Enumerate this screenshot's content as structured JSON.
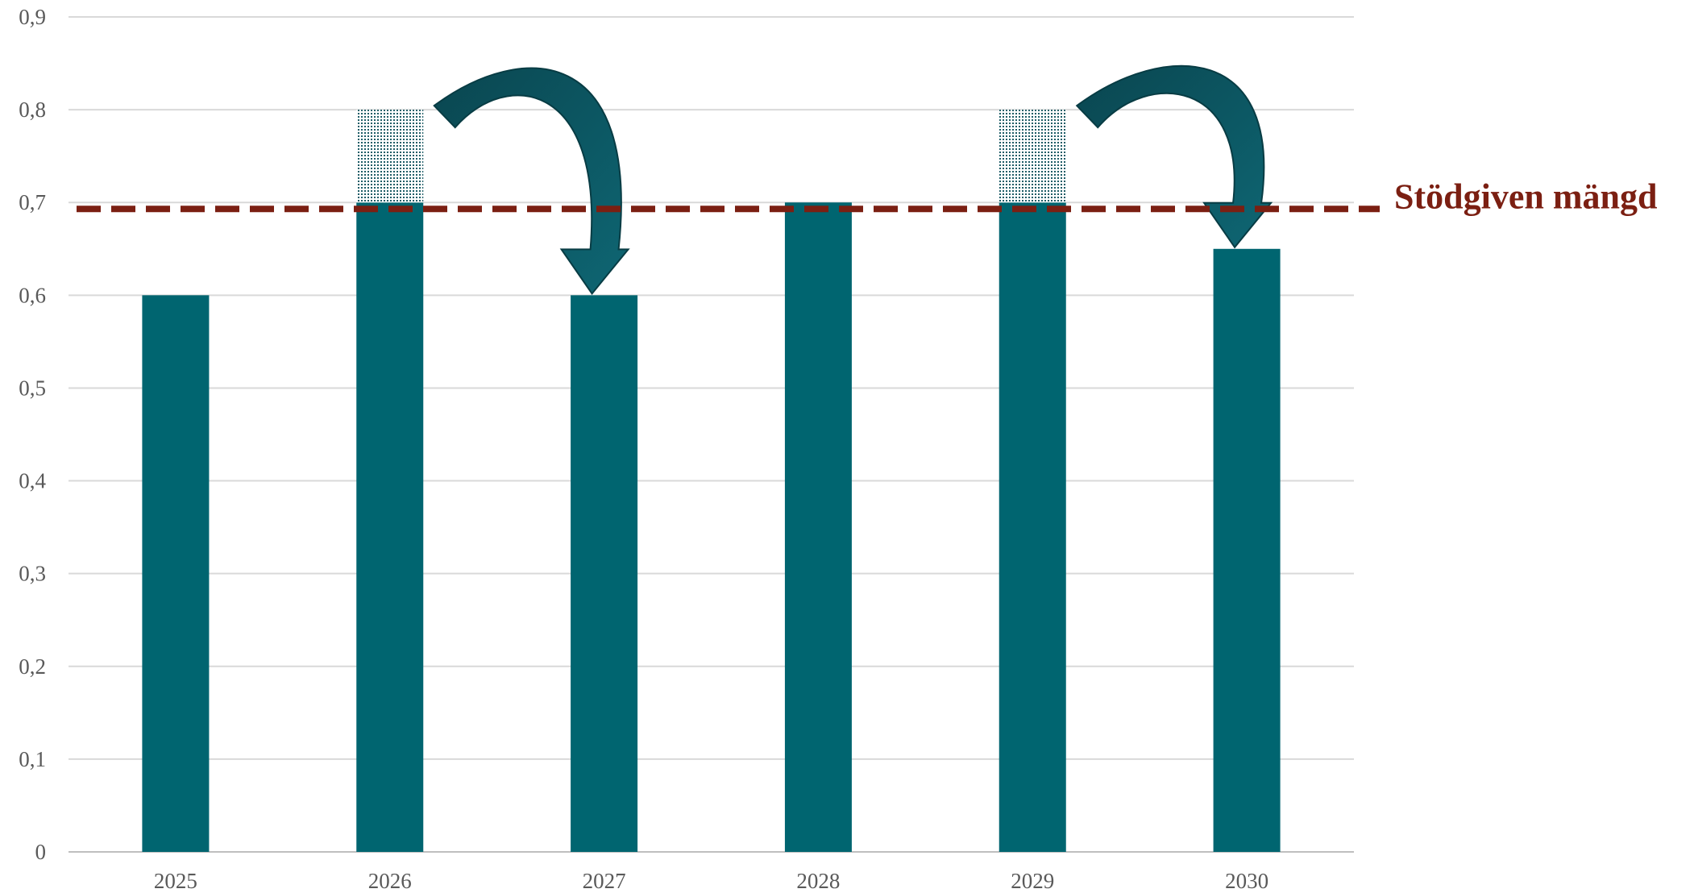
{
  "chart_data": {
    "type": "bar",
    "categories": [
      "2025",
      "2026",
      "2027",
      "2028",
      "2029",
      "2030"
    ],
    "values": [
      0.6,
      0.7,
      0.6,
      0.7,
      0.7,
      0.65
    ],
    "excess_values": [
      0,
      0.1,
      0,
      0,
      0.1,
      0
    ],
    "ylim": [
      0,
      0.9
    ],
    "yticks": [
      "0",
      "0,1",
      "0,2",
      "0,3",
      "0,4",
      "0,5",
      "0,6",
      "0,7",
      "0,8",
      "0,9"
    ],
    "grid": true,
    "reference_line": {
      "value": 0.693,
      "label": "Stödgiven mängd",
      "style": "dashed"
    },
    "transfers": [
      {
        "from": "2026",
        "to": "2027"
      },
      {
        "from": "2029",
        "to": "2030"
      }
    ],
    "colors": {
      "bar": "#006570",
      "excess_dots": "#1d5c66",
      "reference_line": "#7b1f12",
      "arrow_fill": "#0e6673",
      "arrow_dark": "#0a4650",
      "grid": "#d9d9d9",
      "tick_text": "#595959"
    }
  }
}
